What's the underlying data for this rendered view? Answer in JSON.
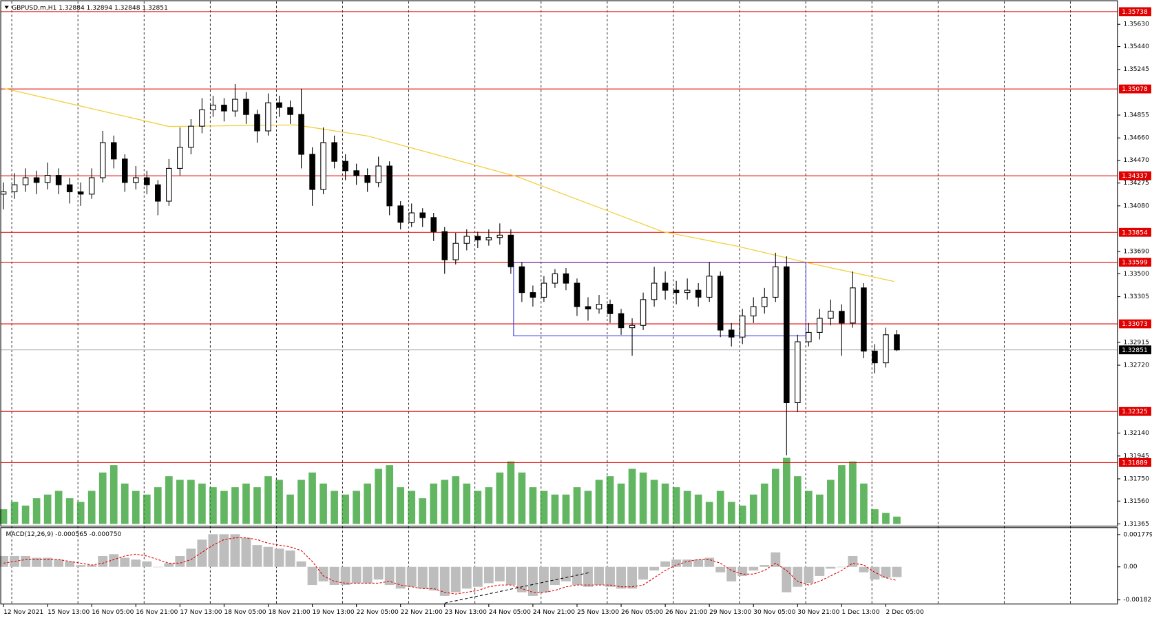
{
  "chart_data": {
    "type": "candlestick",
    "title": "GBPUSD,m,H1  1.32884 1.32894 1.32848 1.32851",
    "x": [
      0,
      4,
      8,
      12,
      16,
      20,
      24,
      28,
      32,
      36,
      40,
      44,
      48,
      52,
      56,
      60,
      64,
      68,
      72,
      76,
      80,
      84,
      88,
      92,
      96,
      100,
      104,
      108,
      112,
      116,
      120,
      124,
      128,
      132,
      136,
      140,
      144,
      148,
      152,
      156,
      160,
      164,
      168,
      172,
      176,
      180,
      184,
      188,
      192,
      196,
      200,
      204,
      208,
      212,
      216,
      220,
      224,
      228,
      232,
      236,
      240,
      244,
      248,
      252,
      256,
      260,
      264,
      268,
      272,
      276,
      280,
      284,
      288,
      292,
      296,
      300,
      304,
      308,
      312,
      316,
      320,
      324
    ],
    "open": [
      1.3418,
      1.342,
      1.3426,
      1.3432,
      1.3428,
      1.3434,
      1.3426,
      1.342,
      1.3418,
      1.3432,
      1.3462,
      1.3448,
      1.3428,
      1.3432,
      1.3426,
      1.3412,
      1.344,
      1.3458,
      1.3476,
      1.349,
      1.3494,
      1.3489,
      1.3499,
      1.3486,
      1.3472,
      1.3496,
      1.3492,
      1.3486,
      1.3452,
      1.3422,
      1.3462,
      1.3446,
      1.3438,
      1.3434,
      1.3428,
      1.3442,
      1.3408,
      1.3394,
      1.3402,
      1.3398,
      1.3386,
      1.3362,
      1.3376,
      1.3382,
      1.3379,
      1.3381,
      1.3383,
      1.3356,
      1.3334,
      1.333,
      1.3342,
      1.335,
      1.3342,
      1.3322,
      1.332,
      1.3324,
      1.3316,
      1.3304,
      1.3306,
      1.3328,
      1.3342,
      1.3336,
      1.3334,
      1.3336,
      1.333,
      1.3348,
      1.3302,
      1.3296,
      1.3314,
      1.3322,
      1.333,
      1.3356,
      1.324,
      1.3292,
      1.33,
      1.3312,
      1.3318,
      1.3308,
      1.3338,
      1.3284,
      1.3274,
      1.3298
    ],
    "high": [
      1.3428,
      1.3436,
      1.344,
      1.3438,
      1.3445,
      1.344,
      1.3432,
      1.3428,
      1.344,
      1.3472,
      1.3468,
      1.3452,
      1.3442,
      1.3438,
      1.343,
      1.3448,
      1.3475,
      1.3482,
      1.35,
      1.3502,
      1.35,
      1.3512,
      1.3505,
      1.349,
      1.3504,
      1.3502,
      1.3498,
      1.3508,
      1.3458,
      1.3475,
      1.3468,
      1.3452,
      1.3444,
      1.344,
      1.345,
      1.3446,
      1.3412,
      1.341,
      1.3406,
      1.3402,
      1.339,
      1.3385,
      1.3388,
      1.3386,
      1.3388,
      1.3393,
      1.3388,
      1.336,
      1.334,
      1.3348,
      1.3354,
      1.3355,
      1.3346,
      1.333,
      1.3332,
      1.3328,
      1.332,
      1.3312,
      1.3334,
      1.3356,
      1.3352,
      1.3344,
      1.3346,
      1.3342,
      1.336,
      1.3352,
      1.3308,
      1.332,
      1.333,
      1.3338,
      1.3368,
      1.3365,
      1.3298,
      1.3308,
      1.332,
      1.3328,
      1.3324,
      1.3352,
      1.3342,
      1.329,
      1.3304,
      1.3302
    ],
    "low": [
      1.3405,
      1.3414,
      1.342,
      1.3418,
      1.3422,
      1.3418,
      1.341,
      1.3408,
      1.3414,
      1.3428,
      1.344,
      1.342,
      1.3422,
      1.3418,
      1.34,
      1.3408,
      1.3434,
      1.3452,
      1.347,
      1.3484,
      1.348,
      1.3484,
      1.3478,
      1.3462,
      1.3468,
      1.3484,
      1.3478,
      1.344,
      1.3408,
      1.3418,
      1.344,
      1.343,
      1.3426,
      1.342,
      1.3424,
      1.34,
      1.3388,
      1.339,
      1.339,
      1.3378,
      1.335,
      1.3358,
      1.337,
      1.3372,
      1.3374,
      1.3375,
      1.335,
      1.3326,
      1.3322,
      1.3326,
      1.3338,
      1.3336,
      1.3314,
      1.331,
      1.3316,
      1.3308,
      1.3298,
      1.328,
      1.3302,
      1.3322,
      1.3328,
      1.3324,
      1.3328,
      1.3322,
      1.3326,
      1.3296,
      1.3288,
      1.329,
      1.3308,
      1.3316,
      1.3326,
      1.3195,
      1.3232,
      1.3288,
      1.3294,
      1.3306,
      1.328,
      1.3304,
      1.3278,
      1.3265,
      1.327,
      1.3284
    ],
    "close": [
      1.342,
      1.3426,
      1.3432,
      1.3428,
      1.3434,
      1.3426,
      1.342,
      1.3418,
      1.3432,
      1.3462,
      1.3448,
      1.3428,
      1.3432,
      1.3426,
      1.3412,
      1.344,
      1.3458,
      1.3476,
      1.349,
      1.3494,
      1.3489,
      1.3499,
      1.3486,
      1.3472,
      1.3496,
      1.3492,
      1.3486,
      1.3452,
      1.3422,
      1.3462,
      1.3446,
      1.3438,
      1.3434,
      1.3428,
      1.3442,
      1.3408,
      1.3394,
      1.3402,
      1.3398,
      1.3386,
      1.3362,
      1.3376,
      1.3382,
      1.3379,
      1.3381,
      1.3383,
      1.3356,
      1.3334,
      1.333,
      1.3342,
      1.335,
      1.3342,
      1.3322,
      1.332,
      1.3324,
      1.3316,
      1.3304,
      1.3306,
      1.3328,
      1.3342,
      1.3336,
      1.3334,
      1.3336,
      1.333,
      1.3348,
      1.3302,
      1.3296,
      1.3314,
      1.3322,
      1.333,
      1.3356,
      1.324,
      1.3292,
      1.33,
      1.3312,
      1.3318,
      1.3308,
      1.3338,
      1.3284,
      1.3274,
      1.3298,
      1.32851
    ],
    "xlim": [
      -1,
      404
    ],
    "ylim": [
      1.31346,
      1.35806
    ],
    "xticks": [
      {
        "value": 0,
        "label": "12 Nov 2021"
      },
      {
        "value": 16,
        "label": "15 Nov 13:00"
      },
      {
        "value": 32,
        "label": "16 Nov 05:00"
      },
      {
        "value": 48,
        "label": "16 Nov 21:00"
      },
      {
        "value": 64,
        "label": "17 Nov 13:00"
      },
      {
        "value": 80,
        "label": "18 Nov 05:00"
      },
      {
        "value": 96,
        "label": "18 Nov 21:00"
      },
      {
        "value": 112,
        "label": "19 Nov 13:00"
      },
      {
        "value": 128,
        "label": "22 Nov 05:00"
      },
      {
        "value": 144,
        "label": "22 Nov 21:00"
      },
      {
        "value": 160,
        "label": "23 Nov 13:00"
      },
      {
        "value": 176,
        "label": "24 Nov 05:00"
      },
      {
        "value": 192,
        "label": "24 Nov 21:00"
      },
      {
        "value": 208,
        "label": "25 Nov 13:00"
      },
      {
        "value": 224,
        "label": "26 Nov 05:00"
      },
      {
        "value": 240,
        "label": "26 Nov 21:00"
      },
      {
        "value": 256,
        "label": "29 Nov 13:00"
      },
      {
        "value": 272,
        "label": "30 Nov 05:00"
      },
      {
        "value": 288,
        "label": "30 Nov 21:00"
      },
      {
        "value": 304,
        "label": "1 Dec 13:00"
      },
      {
        "value": 320,
        "label": "2 Dec 05:00"
      }
    ],
    "yticks": [
      {
        "value": 1.3563,
        "label": "1.35630"
      },
      {
        "value": 1.3544,
        "label": "1.35440"
      },
      1.35245,
      1.34855,
      {
        "value": 1.3466,
        "label": "1.34660"
      },
      {
        "value": 1.3447,
        "label": "1.34470"
      },
      1.34275,
      {
        "value": 1.3408,
        "label": "1.34080"
      },
      {
        "value": 1.3369,
        "label": "1.33690"
      },
      {
        "value": 1.335,
        "label": "1.33500"
      },
      1.33305,
      1.32915,
      {
        "value": 1.3272,
        "label": "1.32720"
      },
      {
        "value": 1.3214,
        "label": "1.32140"
      },
      1.31945,
      {
        "value": 1.3175,
        "label": "1.31750"
      },
      {
        "value": 1.3156,
        "label": "1.31560"
      },
      1.31365
    ],
    "colors": {
      "up": "#ffffff",
      "down": "#000000",
      "wick": "#000000"
    },
    "levels": [
      1.35738,
      1.35078,
      1.34337,
      1.33854,
      1.33599,
      1.33073,
      1.32325,
      1.31889
    ],
    "level_color": "#e00000",
    "current": 1.32851,
    "ma": {
      "color": "#f2cf3a",
      "x": [
        0,
        60,
        106,
        132,
        186,
        239,
        266,
        292,
        323
      ],
      "values": [
        1.35084,
        1.34758,
        1.34771,
        1.34677,
        1.34332,
        1.33861,
        1.33736,
        1.33592,
        1.33435
      ]
    },
    "rectangle": {
      "color": "#3a3ae0",
      "x": [
        185,
        291
      ],
      "y": [
        1.33599,
        1.3297
      ]
    },
    "volume": {
      "color": "#2e9e2e",
      "ylim": [
        0,
        100
      ],
      "values": [
        20,
        30,
        25,
        35,
        40,
        45,
        35,
        30,
        45,
        70,
        80,
        55,
        45,
        40,
        50,
        65,
        60,
        60,
        55,
        50,
        45,
        50,
        55,
        50,
        65,
        60,
        40,
        60,
        70,
        55,
        45,
        40,
        45,
        55,
        75,
        80,
        50,
        45,
        35,
        55,
        60,
        65,
        55,
        45,
        50,
        70,
        85,
        70,
        50,
        45,
        40,
        40,
        50,
        45,
        60,
        65,
        55,
        75,
        70,
        60,
        55,
        50,
        45,
        40,
        30,
        45,
        30,
        25,
        40,
        55,
        75,
        90,
        65,
        45,
        40,
        60,
        80,
        85,
        55,
        20,
        15,
        10
      ]
    },
    "macd": {
      "title": "MACD(12,26,9) -0.000565 -0.000750",
      "ylim": [
        -0.00205,
        0.002
      ],
      "yticks": [
        0.001779,
        {
          "value": 0,
          "label": "0.00"
        },
        -0.00182
      ],
      "hist_color": "#bdbdbd",
      "signal_color": "#e00000",
      "values": [
        0.0006,
        0.0006,
        0.0006,
        0.0005,
        0.0005,
        0.0004,
        0.0003,
        0.0001,
        0.0001,
        0.0006,
        0.0007,
        0.0005,
        0.0004,
        0.0003,
        0,
        0.0002,
        0.0006,
        0.001,
        0.0015,
        0.0018,
        0.0018,
        0.0018,
        0.0016,
        0.0012,
        0.0011,
        0.001,
        0.0009,
        0.0003,
        -0.001,
        -0.0008,
        -0.001,
        -0.001,
        -0.0009,
        -0.0009,
        -0.0007,
        -0.001,
        -0.0012,
        -0.0011,
        -0.0012,
        -0.0013,
        -0.0016,
        -0.0014,
        -0.0012,
        -0.0011,
        -0.0009,
        -0.0008,
        -0.001,
        -0.0014,
        -0.0016,
        -0.0014,
        -0.001,
        -0.0008,
        -0.001,
        -0.0011,
        -0.001,
        -0.0011,
        -0.0012,
        -0.0012,
        -0.0007,
        -0.0002,
        0.0003,
        0.0004,
        0.0004,
        0.0004,
        0.0005,
        -0.0003,
        -0.0008,
        -0.0005,
        -0.0002,
        0.0001,
        0.0008,
        -0.0014,
        -0.0011,
        -0.0009,
        -0.0005,
        -0.0001,
        0,
        0.0006,
        -0.0003,
        -0.0007,
        -0.0006,
        -0.000565
      ],
      "signal": [
        0.0002,
        0.0003,
        0.0004,
        0.0004,
        0.0004,
        0.0004,
        0.0003,
        0.0002,
        0.0001,
        0.0002,
        0.0004,
        0.0006,
        0.0007,
        0.0006,
        0.0004,
        0.0002,
        0.0002,
        0.0004,
        0.0008,
        0.0012,
        0.0015,
        0.0016,
        0.0016,
        0.0015,
        0.0013,
        0.0012,
        0.0011,
        0.0009,
        0.0003,
        -0.0005,
        -0.0008,
        -0.0009,
        -0.0009,
        -0.0009,
        -0.0009,
        -0.0008,
        -0.001,
        -0.0011,
        -0.0012,
        -0.0012,
        -0.0014,
        -0.0015,
        -0.0014,
        -0.0013,
        -0.0011,
        -0.001,
        -0.001,
        -0.0012,
        -0.0014,
        -0.0014,
        -0.0013,
        -0.0011,
        -0.001,
        -0.001,
        -0.001,
        -0.001,
        -0.0011,
        -0.0011,
        -0.001,
        -0.0006,
        -0.0002,
        0.0001,
        0.0003,
        0.0004,
        0.0004,
        0.0002,
        -0.0002,
        -0.0004,
        -0.0004,
        -0.0002,
        0.0002,
        -0.0002,
        -0.0008,
        -0.001,
        -0.0008,
        -0.0005,
        -0.0002,
        0.0002,
        0.0001,
        -0.0003,
        -0.0006,
        -0.00075
      ],
      "trendline": {
        "x": [
          160,
          213
        ],
        "y": [
          -0.002,
          -0.0003
        ]
      }
    }
  }
}
